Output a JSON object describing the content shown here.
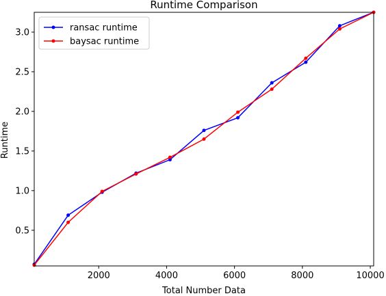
{
  "chart_data": {
    "type": "line",
    "title": "Runtime Comparison",
    "xlabel": "Total Number Data",
    "ylabel": "Runtime",
    "xlim": [
      100,
      10100
    ],
    "ylim": [
      0.05,
      3.25
    ],
    "xticks": [
      2000,
      4000,
      6000,
      8000,
      10000
    ],
    "yticks": [
      0.5,
      1.0,
      1.5,
      2.0,
      2.5,
      3.0
    ],
    "xtick_labels": [
      "2000",
      "4000",
      "6000",
      "8000",
      "10000"
    ],
    "ytick_labels": [
      "0.5",
      "1.0",
      "1.5",
      "2.0",
      "2.5",
      "3.0"
    ],
    "grid": false,
    "legend_position": "top-left",
    "x": [
      100,
      1100,
      2100,
      3100,
      4100,
      5100,
      6100,
      7100,
      8100,
      9100,
      10100
    ],
    "series": [
      {
        "name": "ransac runtime",
        "color": "#0000ff",
        "values": [
          0.07,
          0.69,
          0.98,
          1.22,
          1.39,
          1.76,
          1.92,
          2.36,
          2.62,
          3.08,
          3.25
        ]
      },
      {
        "name": "baysac runtime",
        "color": "#ff0000",
        "values": [
          0.06,
          0.6,
          0.99,
          1.21,
          1.42,
          1.65,
          1.99,
          2.28,
          2.67,
          3.04,
          3.25
        ]
      }
    ]
  }
}
